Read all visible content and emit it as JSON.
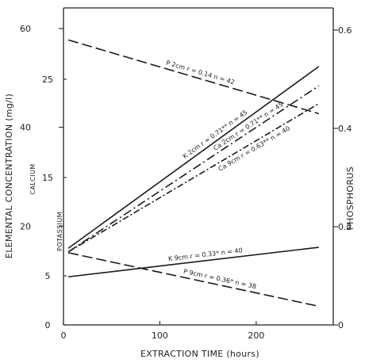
{
  "chart_data": {
    "type": "line",
    "xlabel": "EXTRACTION TIME (hours)",
    "ylabel": "ELEMENTAL CONCENTRATION (mg/l)",
    "right_ylabel": "PHOSPHORUS",
    "sub_labels": [
      "CALCIUM",
      "POTASSIUM"
    ],
    "xlim": [
      0,
      280
    ],
    "x_ticks": [
      {
        "value": 0,
        "label": "0"
      },
      {
        "value": 100,
        "label": "100"
      },
      {
        "value": 200,
        "label": "200"
      }
    ],
    "axes": {
      "calcium": {
        "range": [
          0,
          60
        ],
        "ticks": [
          {
            "value": 20,
            "label": "20"
          },
          {
            "value": 40,
            "label": "40"
          },
          {
            "value": 60,
            "label": "60"
          }
        ]
      },
      "potassium": {
        "range": [
          0,
          30
        ],
        "ticks": [
          {
            "value": 0,
            "label": "0"
          },
          {
            "value": 5,
            "label": "5"
          },
          {
            "value": 15,
            "label": "15"
          },
          {
            "value": 25,
            "label": "25"
          }
        ]
      },
      "phosphorus": {
        "range": [
          0,
          0.6
        ],
        "ticks": [
          {
            "value": 0,
            "label": "0"
          },
          {
            "value": 0.2,
            "label": "0.2"
          },
          {
            "value": 0.4,
            "label": "0.4"
          },
          {
            "value": 0.6,
            "label": "0.6"
          }
        ]
      }
    },
    "series": [
      {
        "name": "P 2cm",
        "axis": "phosphorus",
        "dash": "dash",
        "x": [
          5,
          265
        ],
        "y": [
          0.58,
          0.43
        ],
        "annotation": "P  2cm   r = 0.14   n = 42"
      },
      {
        "name": "K 2cm",
        "axis": "potassium",
        "dash": "solid",
        "x": [
          5,
          265
        ],
        "y": [
          7.8,
          26.3
        ],
        "annotation": "K  2cm   r = 0.71**   n = 45"
      },
      {
        "name": "Ca 2cm",
        "axis": "calcium",
        "dash": "dashdot",
        "x": [
          5,
          265
        ],
        "y": [
          14.8,
          48.4
        ],
        "annotation": "Ca  2cm   r = 0.71**   n = 45"
      },
      {
        "name": "Ca 9cm",
        "axis": "calcium",
        "dash": "dashdot2",
        "x": [
          5,
          265
        ],
        "y": [
          14.8,
          44.8
        ],
        "annotation": "Ca  9cm   r = 0.63**   n = 40"
      },
      {
        "name": "K 9cm",
        "axis": "potassium",
        "dash": "solid",
        "x": [
          5,
          265
        ],
        "y": [
          4.9,
          7.9
        ],
        "annotation": "K  9cm   r = 0.33*   n = 40"
      },
      {
        "name": "P 9cm",
        "axis": "phosphorus",
        "dash": "dash",
        "x": [
          5,
          265
        ],
        "y": [
          0.147,
          0.038
        ],
        "annotation": "P  9cm   r = 0.36*   n = 38"
      }
    ]
  }
}
